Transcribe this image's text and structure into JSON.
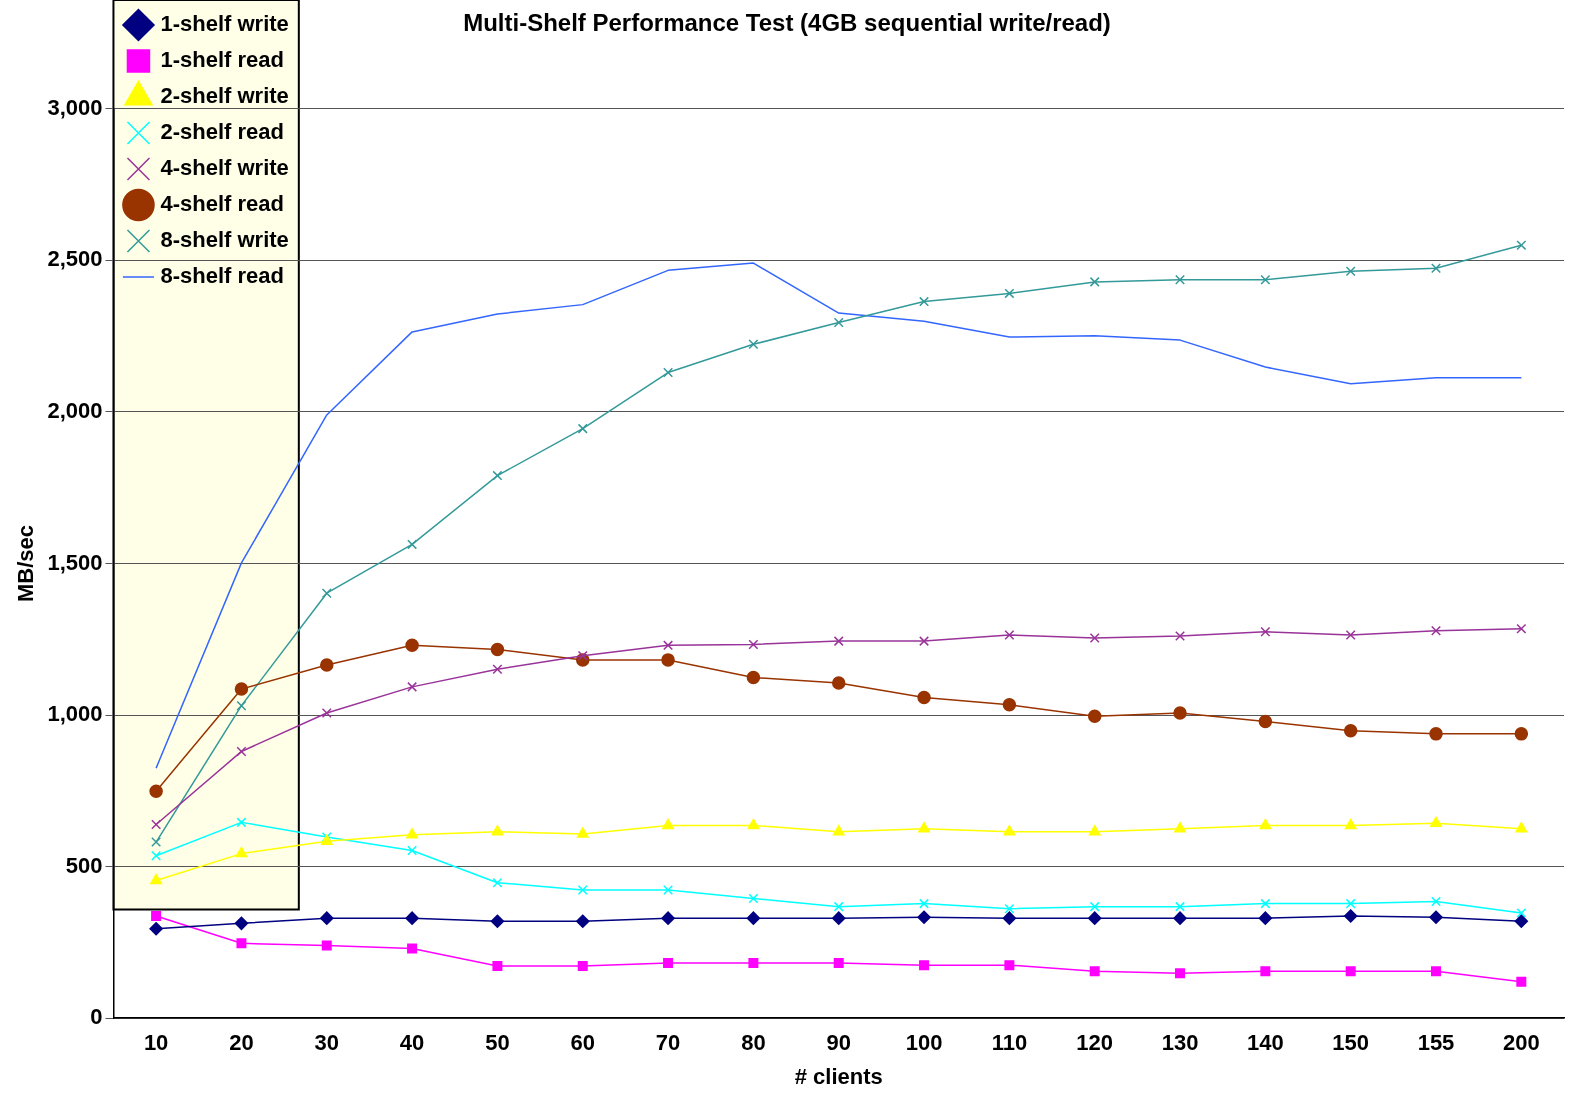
{
  "chart_data": {
    "type": "line",
    "title": "Multi-Shelf Performance Test (4GB sequential write/read)",
    "xlabel": "# clients",
    "ylabel": "MB/sec",
    "categories": [
      "10",
      "20",
      "30",
      "40",
      "50",
      "60",
      "70",
      "80",
      "90",
      "100",
      "110",
      "120",
      "130",
      "140",
      "150",
      "155",
      "200"
    ],
    "series": [
      {
        "name": "1-shelf write",
        "color": "#000080",
        "marker": "diamond",
        "values": [
          295,
          313,
          330,
          330,
          320,
          320,
          330,
          330,
          330,
          333,
          330,
          330,
          330,
          330,
          337,
          333,
          320
        ]
      },
      {
        "name": "1-shelf read",
        "color": "#ff00ff",
        "marker": "square",
        "values": [
          337,
          247,
          240,
          230,
          172,
          172,
          182,
          182,
          182,
          175,
          175,
          155,
          148,
          155,
          155,
          155,
          120
        ]
      },
      {
        "name": "2-shelf write",
        "color": "#ffff00",
        "marker": "triangle",
        "values": [
          454,
          543,
          584,
          605,
          615,
          608,
          636,
          636,
          615,
          625,
          615,
          615,
          625,
          636,
          636,
          643,
          625
        ]
      },
      {
        "name": "2-shelf read",
        "color": "#00ffff",
        "marker": "cross",
        "values": [
          536,
          646,
          598,
          553,
          447,
          423,
          423,
          395,
          368,
          378,
          361,
          368,
          368,
          378,
          378,
          385,
          347
        ]
      },
      {
        "name": "4-shelf write",
        "color": "#993399",
        "marker": "cross",
        "values": [
          639,
          880,
          1007,
          1093,
          1151,
          1196,
          1230,
          1233,
          1244,
          1244,
          1264,
          1254,
          1261,
          1275,
          1264,
          1278,
          1285
        ]
      },
      {
        "name": "4-shelf read",
        "color": "#993300",
        "marker": "circle",
        "values": [
          749,
          1086,
          1165,
          1230,
          1216,
          1182,
          1182,
          1124,
          1106,
          1058,
          1034,
          996,
          1007,
          979,
          948,
          938,
          938
        ]
      },
      {
        "name": "8-shelf write",
        "color": "#339999",
        "marker": "cross",
        "values": [
          581,
          1031,
          1402,
          1563,
          1790,
          1945,
          2130,
          2223,
          2295,
          2364,
          2391,
          2429,
          2436,
          2436,
          2464,
          2474,
          2550
        ]
      },
      {
        "name": "8-shelf read",
        "color": "#3366ff",
        "marker": "none",
        "values": [
          825,
          1502,
          1990,
          2264,
          2323,
          2354,
          2467,
          2491,
          2326,
          2299,
          2247,
          2251,
          2237,
          2148,
          2093,
          2113,
          2113
        ]
      }
    ],
    "ylim": [
      0,
      3000
    ],
    "yticks": [
      0,
      500,
      {
        "value": 1000,
        "label": "1,000"
      },
      {
        "value": 1500,
        "label": "1,500"
      },
      {
        "value": 2000,
        "label": "2,000"
      },
      {
        "value": 2500,
        "label": "2,500"
      },
      {
        "value": 3000,
        "label": "3,000"
      }
    ],
    "grid": "y",
    "legend": "top left"
  }
}
